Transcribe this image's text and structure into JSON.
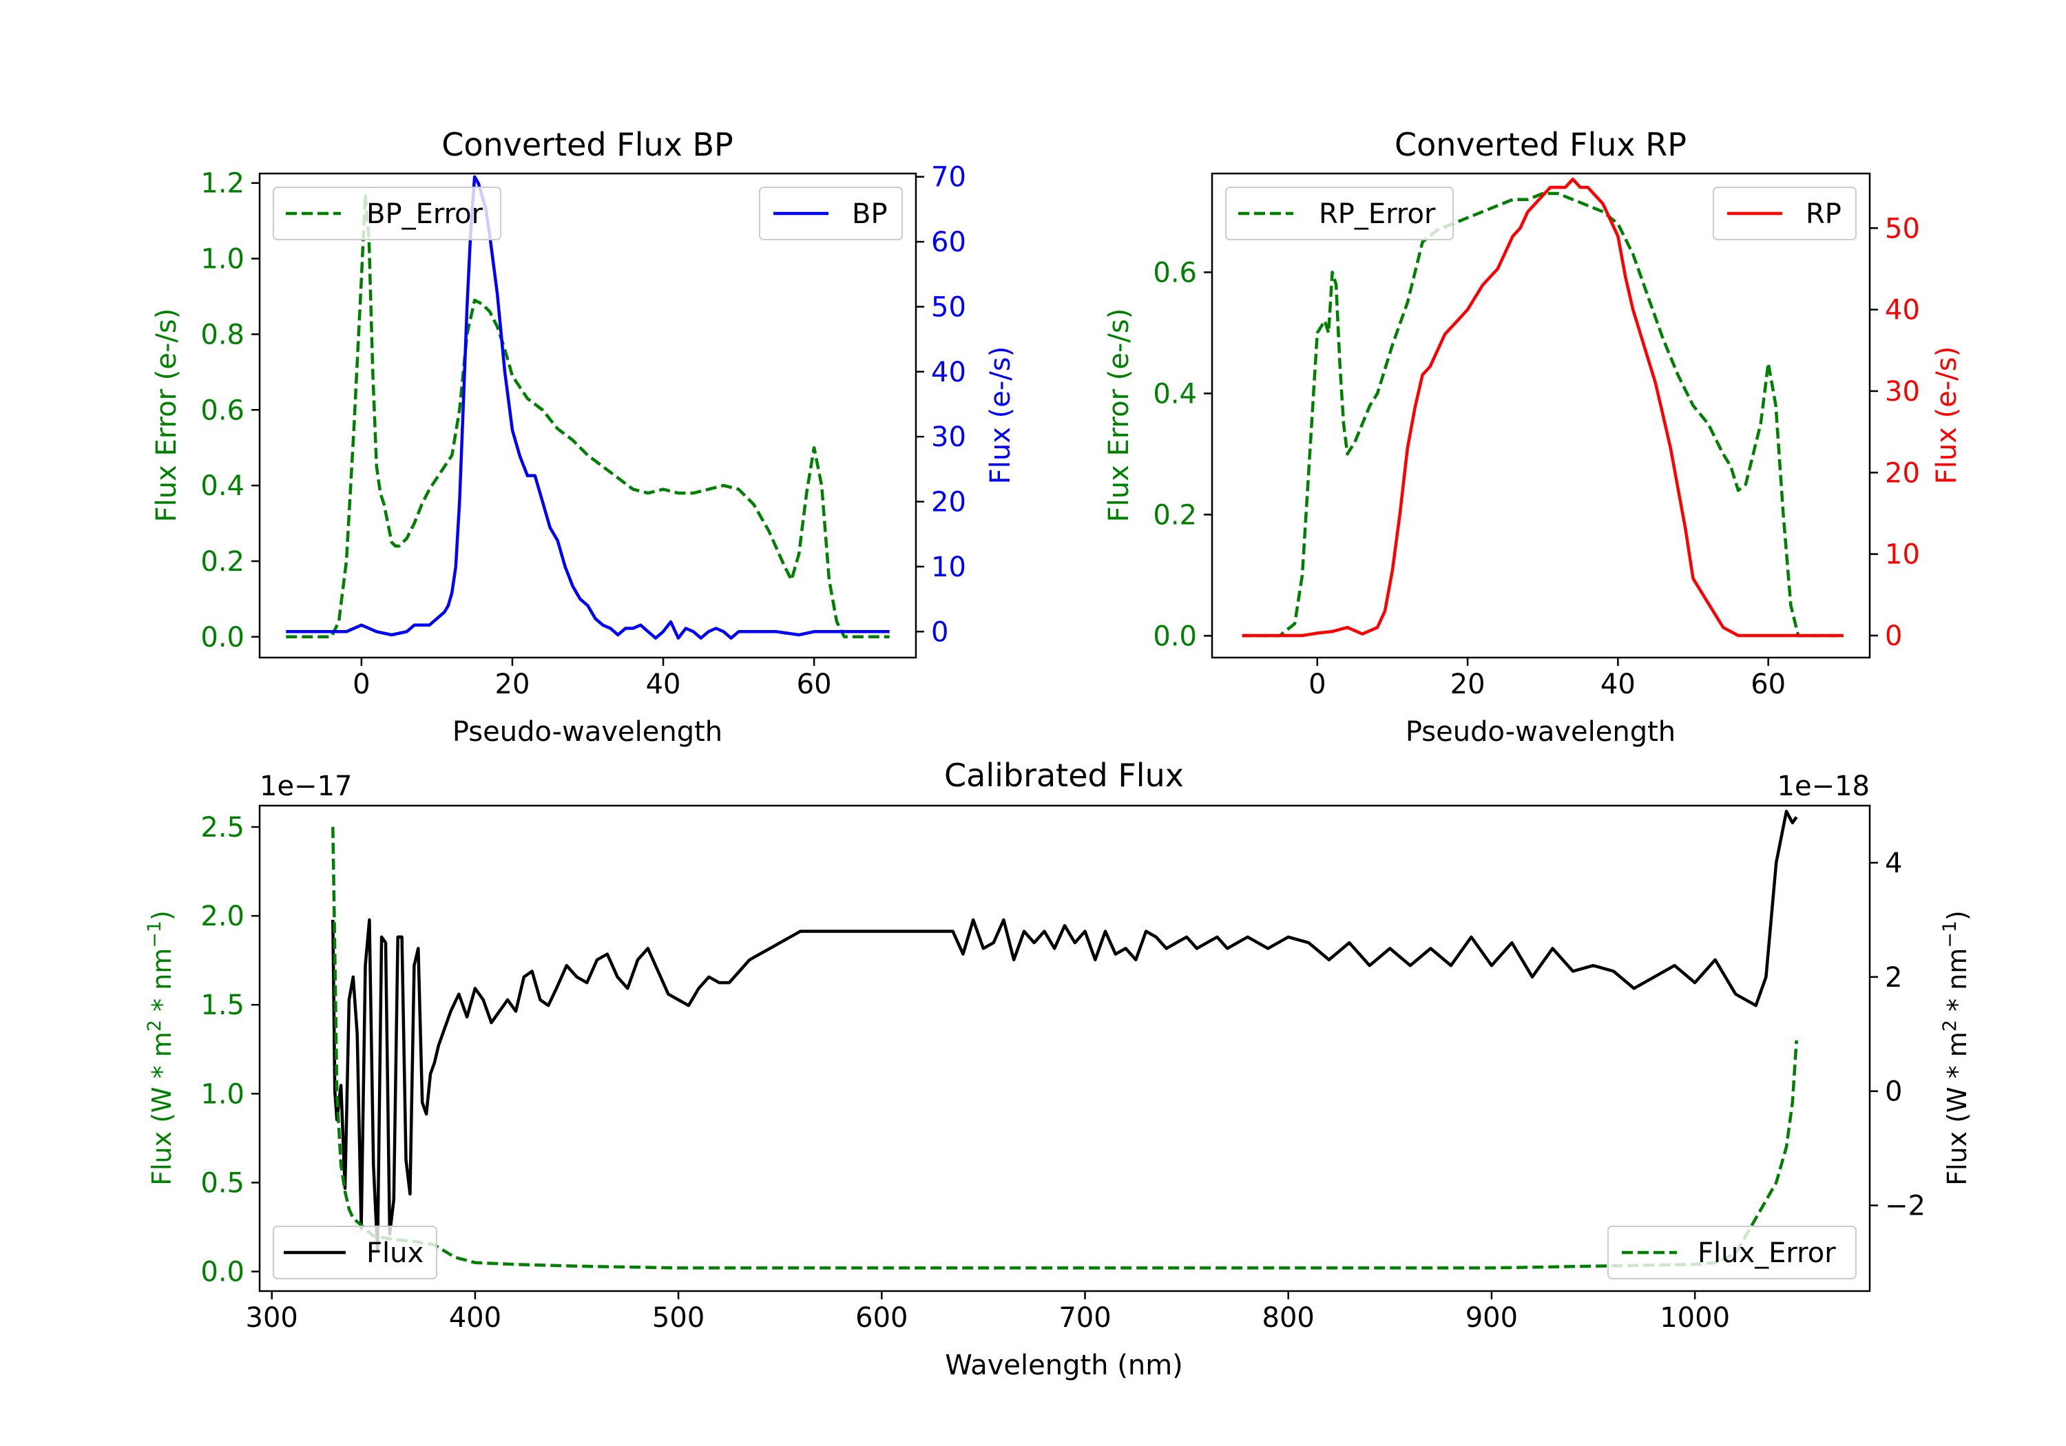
{
  "colors": {
    "green": "#008000",
    "blue": "#0000ff",
    "red": "#ff0000",
    "black": "#000000"
  },
  "chart_data": [
    {
      "id": "bp",
      "type": "line",
      "title": "Converted Flux BP",
      "xlabel": "Pseudo-wavelength",
      "ylabel_left": "Flux Error (e-/s)",
      "ylabel_right": "Flux (e-/s)",
      "xlim": [
        -13.5,
        73.5
      ],
      "ylim_left": [
        -0.055,
        1.225
      ],
      "ylim_right": [
        -4.0,
        70.5
      ],
      "xticks": [
        "0",
        "20",
        "40",
        "60"
      ],
      "yticks_left": [
        "0.0",
        "0.2",
        "0.4",
        "0.6",
        "0.8",
        "1.0",
        "1.2"
      ],
      "yticks_right": [
        "0",
        "10",
        "20",
        "30",
        "40",
        "50",
        "60",
        "70"
      ],
      "legend_left": "BP_Error",
      "legend_right": "BP",
      "series": [
        {
          "name": "BP_Error",
          "axis": "left",
          "color": "#008000",
          "dash": true,
          "x": [
            -10,
            -4,
            -3,
            -2,
            -1,
            0,
            0.5,
            1,
            1.5,
            2,
            2.5,
            3,
            3.5,
            4,
            4.5,
            5,
            6,
            7,
            8,
            9,
            10,
            11,
            12,
            13,
            14,
            15,
            16,
            17,
            18,
            19,
            20,
            21,
            22,
            24,
            26,
            28,
            30,
            32,
            34,
            36,
            38,
            40,
            42,
            44,
            46,
            48,
            50,
            52,
            54,
            56,
            57,
            58,
            59,
            60,
            61,
            62,
            63,
            64,
            66,
            70
          ],
          "values": [
            0,
            0,
            0.04,
            0.2,
            0.55,
            0.95,
            1.17,
            1.05,
            0.7,
            0.45,
            0.38,
            0.35,
            0.3,
            0.25,
            0.24,
            0.24,
            0.26,
            0.3,
            0.35,
            0.39,
            0.42,
            0.45,
            0.48,
            0.6,
            0.8,
            0.89,
            0.88,
            0.86,
            0.82,
            0.76,
            0.69,
            0.66,
            0.63,
            0.6,
            0.55,
            0.52,
            0.48,
            0.45,
            0.42,
            0.39,
            0.38,
            0.39,
            0.38,
            0.38,
            0.39,
            0.4,
            0.39,
            0.35,
            0.28,
            0.19,
            0.15,
            0.22,
            0.38,
            0.5,
            0.4,
            0.15,
            0.04,
            0,
            0,
            0
          ]
        },
        {
          "name": "BP",
          "axis": "right",
          "color": "#0000ff",
          "dash": false,
          "x": [
            -10,
            -5,
            -2,
            0,
            2,
            4,
            6,
            7,
            8,
            9,
            10,
            11,
            11.5,
            12,
            12.5,
            13,
            13.5,
            14,
            14.5,
            15,
            15.5,
            16,
            16.5,
            17,
            18,
            19,
            20,
            21,
            22,
            23,
            24,
            25,
            26,
            27,
            28,
            29,
            30,
            31,
            32,
            33,
            34,
            35,
            36,
            37,
            38,
            39,
            40,
            41,
            42,
            43,
            44,
            45,
            46,
            47,
            48,
            49,
            50,
            52,
            55,
            58,
            60,
            62,
            65,
            70
          ],
          "values": [
            0,
            0,
            0,
            1,
            0,
            -0.5,
            0,
            1,
            1,
            1,
            2,
            3,
            4,
            6,
            10,
            20,
            35,
            50,
            62,
            70,
            69,
            67,
            65,
            61,
            52,
            40,
            31,
            27,
            24,
            24,
            20,
            16,
            14,
            10,
            7,
            5,
            4,
            2,
            1,
            0.5,
            -0.5,
            0.5,
            0.5,
            1,
            0,
            -1,
            0,
            1.5,
            -1,
            0.5,
            0,
            -1,
            0,
            0.5,
            0,
            -1,
            0,
            0,
            0,
            -0.5,
            0,
            0,
            0,
            0
          ]
        }
      ]
    },
    {
      "id": "rp",
      "type": "line",
      "title": "Converted Flux RP",
      "xlabel": "Pseudo-wavelength",
      "ylabel_left": "Flux Error (e-/s)",
      "ylabel_right": "Flux (e-/s)",
      "xlim": [
        -14,
        73.5
      ],
      "ylim_left": [
        -0.036,
        0.763
      ],
      "ylim_right": [
        -2.7,
        56.7
      ],
      "xticks": [
        "0",
        "20",
        "40",
        "60"
      ],
      "yticks_left": [
        "0.0",
        "0.2",
        "0.4",
        "0.6"
      ],
      "yticks_right": [
        "0",
        "10",
        "20",
        "30",
        "40",
        "50"
      ],
      "legend_left": "RP_Error",
      "legend_right": "RP",
      "series": [
        {
          "name": "RP_Error",
          "axis": "left",
          "color": "#008000",
          "dash": true,
          "x": [
            -10,
            -5,
            -4,
            -3,
            -2,
            -1,
            0,
            1,
            1.5,
            2,
            2.5,
            3,
            3.5,
            4,
            5,
            6,
            7,
            8,
            10,
            12,
            13,
            14,
            16,
            18,
            20,
            22,
            24,
            26,
            28,
            30,
            32,
            34,
            36,
            38,
            40,
            42,
            44,
            46,
            48,
            50,
            52,
            54,
            55,
            56,
            57,
            58,
            59,
            60,
            61,
            62,
            63,
            64,
            66,
            70
          ],
          "values": [
            0,
            0,
            0.01,
            0.02,
            0.1,
            0.3,
            0.5,
            0.52,
            0.5,
            0.6,
            0.58,
            0.45,
            0.35,
            0.3,
            0.32,
            0.35,
            0.38,
            0.4,
            0.48,
            0.55,
            0.6,
            0.65,
            0.67,
            0.68,
            0.69,
            0.7,
            0.71,
            0.72,
            0.72,
            0.73,
            0.73,
            0.72,
            0.71,
            0.7,
            0.68,
            0.63,
            0.56,
            0.49,
            0.43,
            0.38,
            0.35,
            0.3,
            0.28,
            0.24,
            0.25,
            0.3,
            0.35,
            0.45,
            0.38,
            0.2,
            0.05,
            0,
            0,
            0
          ]
        },
        {
          "name": "RP",
          "axis": "right",
          "color": "#ff0000",
          "dash": false,
          "x": [
            -10,
            -5,
            -2,
            0,
            2,
            4,
            6,
            8,
            9,
            10,
            11,
            12,
            13,
            14,
            15,
            16,
            17,
            18,
            19,
            20,
            22,
            24,
            25,
            26,
            27,
            28,
            29,
            30,
            31,
            32,
            33,
            34,
            35,
            36,
            37,
            38,
            39,
            40,
            41,
            42,
            43,
            44,
            45,
            46,
            47,
            48,
            49,
            50,
            52,
            54,
            56,
            58,
            60,
            62,
            65,
            70
          ],
          "values": [
            0,
            0,
            0,
            0.3,
            0.5,
            1,
            0.2,
            1,
            3,
            8,
            15,
            23,
            28,
            32,
            33,
            35,
            37,
            38,
            39,
            40,
            43,
            45,
            47,
            49,
            50,
            52,
            53,
            54,
            55,
            55,
            55,
            56,
            55,
            55,
            54,
            53,
            51,
            49,
            44,
            40,
            37,
            34,
            31,
            27,
            23,
            18,
            13,
            7,
            4,
            1,
            0,
            0,
            0,
            0,
            0,
            0
          ]
        }
      ]
    },
    {
      "id": "calibrated",
      "type": "line",
      "title": "Calibrated Flux",
      "xlabel": "Wavelength (nm)",
      "ylabel_left": "Flux (W * m$^2$ * nm$^{-1}$)",
      "ylabel_right": "Flux (W * m$^2$ * nm$^{-1}$)",
      "offset_left": "1e−17",
      "offset_right": "1e−18",
      "xlim": [
        294,
        1086
      ],
      "ylim_left": [
        -0.11,
        2.62
      ],
      "ylim_right": [
        -3.5,
        5.0
      ],
      "xticks": [
        "300",
        "400",
        "500",
        "600",
        "700",
        "800",
        "900",
        "1000"
      ],
      "yticks_left": [
        "0.0",
        "0.5",
        "1.0",
        "1.5",
        "2.0",
        "2.5"
      ],
      "yticks_right": [
        "−2",
        "0",
        "2",
        "4"
      ],
      "legend_left": "Flux",
      "legend_right": "Flux_Error",
      "series": [
        {
          "name": "Flux",
          "axis": "right",
          "color": "#000000",
          "dash": false,
          "x": [
            330,
            331,
            332,
            334,
            336,
            338,
            340,
            342,
            344,
            346,
            348,
            350,
            352,
            354,
            356,
            358,
            360,
            362,
            364,
            366,
            368,
            370,
            372,
            374,
            376,
            378,
            380,
            382,
            384,
            386,
            388,
            392,
            396,
            400,
            404,
            408,
            412,
            416,
            420,
            424,
            428,
            432,
            436,
            440,
            445,
            450,
            455,
            460,
            465,
            470,
            475,
            480,
            485,
            490,
            495,
            500,
            505,
            510,
            515,
            520,
            525,
            530,
            535,
            540,
            545,
            550,
            555,
            560,
            565,
            570,
            575,
            580,
            585,
            590,
            595,
            600,
            605,
            610,
            615,
            620,
            625,
            630,
            635,
            640,
            645,
            650,
            655,
            660,
            665,
            670,
            675,
            680,
            685,
            690,
            695,
            700,
            705,
            710,
            715,
            720,
            725,
            730,
            735,
            740,
            745,
            750,
            755,
            760,
            765,
            770,
            775,
            780,
            785,
            790,
            795,
            800,
            810,
            820,
            830,
            840,
            850,
            860,
            870,
            880,
            890,
            900,
            910,
            920,
            930,
            940,
            950,
            960,
            970,
            980,
            990,
            1000,
            1010,
            1020,
            1030,
            1035,
            1040,
            1045,
            1048,
            1050
          ],
          "values": [
            3,
            0,
            -0.5,
            0.1,
            -1.7,
            1.6,
            2,
            1,
            -2.4,
            2.2,
            3,
            -1.3,
            -2.8,
            2.7,
            2.6,
            -2.5,
            -1.9,
            2.7,
            2.7,
            -1.2,
            -1.8,
            2.2,
            2.5,
            -0.2,
            -0.4,
            0.3,
            0.5,
            0.8,
            1,
            1.2,
            1.4,
            1.7,
            1.3,
            1.8,
            1.6,
            1.2,
            1.4,
            1.6,
            1.4,
            2.0,
            2.1,
            1.6,
            1.5,
            1.8,
            2.2,
            2.0,
            1.9,
            2.3,
            2.4,
            2.0,
            1.8,
            2.3,
            2.5,
            2.1,
            1.7,
            1.6,
            1.5,
            1.8,
            2.0,
            1.9,
            1.9,
            2.1,
            2.3,
            2.4,
            2.5,
            2.6,
            2.7,
            2.8,
            2.8,
            2.8,
            2.8,
            2.8,
            2.8,
            2.8,
            2.8,
            2.8,
            2.8,
            2.8,
            2.8,
            2.8,
            2.8,
            2.8,
            2.8,
            2.4,
            3.0,
            2.5,
            2.6,
            3.0,
            2.3,
            2.8,
            2.6,
            2.8,
            2.5,
            2.9,
            2.6,
            2.8,
            2.3,
            2.8,
            2.4,
            2.5,
            2.3,
            2.8,
            2.7,
            2.5,
            2.6,
            2.7,
            2.5,
            2.6,
            2.7,
            2.5,
            2.6,
            2.7,
            2.6,
            2.5,
            2.6,
            2.7,
            2.6,
            2.3,
            2.6,
            2.2,
            2.5,
            2.2,
            2.5,
            2.2,
            2.7,
            2.2,
            2.6,
            2.0,
            2.5,
            2.1,
            2.2,
            2.1,
            1.8,
            2.0,
            2.2,
            1.9,
            2.3,
            1.7,
            1.5,
            2.0,
            4.0,
            4.9,
            4.7,
            4.8
          ]
        },
        {
          "name": "Flux_Error",
          "axis": "left",
          "color": "#008000",
          "dash": true,
          "x": [
            330,
            331,
            332,
            334,
            336,
            338,
            340,
            345,
            350,
            360,
            370,
            380,
            390,
            400,
            420,
            450,
            500,
            550,
            600,
            650,
            700,
            750,
            800,
            850,
            900,
            950,
            1000,
            1010,
            1020,
            1025,
            1030,
            1035,
            1040,
            1045,
            1048,
            1050
          ],
          "values": [
            2.5,
            1.8,
            1.0,
            0.6,
            0.45,
            0.35,
            0.3,
            0.25,
            0.2,
            0.18,
            0.17,
            0.15,
            0.08,
            0.05,
            0.04,
            0.03,
            0.02,
            0.02,
            0.02,
            0.02,
            0.02,
            0.02,
            0.02,
            0.02,
            0.02,
            0.03,
            0.04,
            0.05,
            0.1,
            0.2,
            0.3,
            0.4,
            0.5,
            0.7,
            0.95,
            1.3
          ]
        }
      ]
    }
  ]
}
